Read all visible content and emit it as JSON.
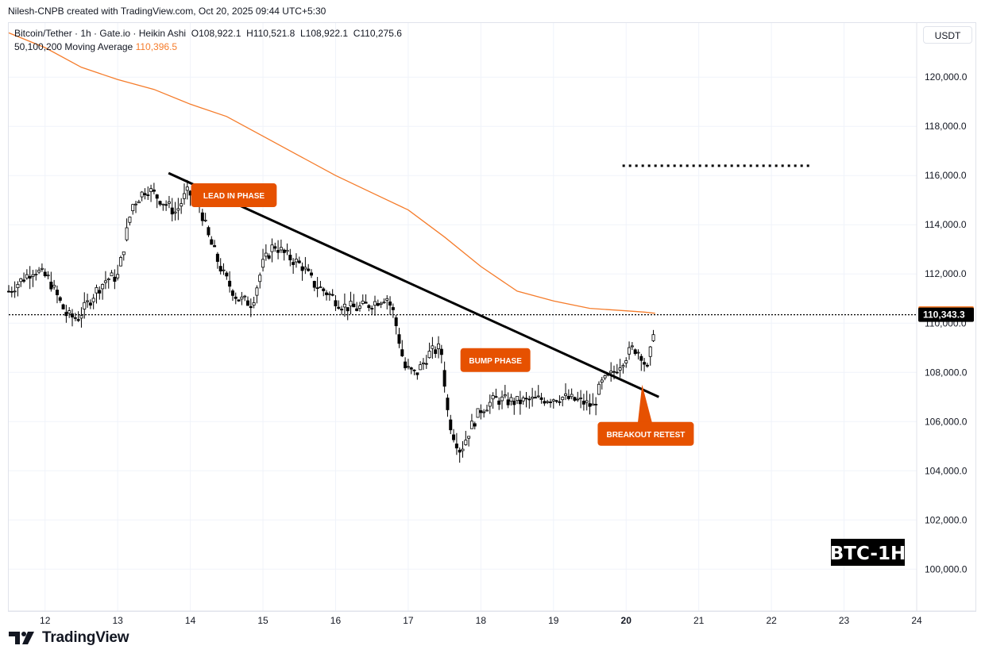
{
  "header": {
    "credit": "Nilesh-CNPB created with TradingView.com, Oct 20, 2025 09:44 UTC+5:30",
    "symbol_line": "Bitcoin/Tether · 1h · Gate.io · Heikin Ashi",
    "ohlc": {
      "o": "O108,922.1",
      "h": "H110,521.8",
      "l": "L108,922.1",
      "c": "C110,275.6"
    },
    "ma_label": "50,100,200 Moving Average",
    "ma_value": "110,396.5"
  },
  "currency_button": "USDT",
  "footer": {
    "brand": "TradingView"
  },
  "colors": {
    "up": "#000000",
    "down": "#000000",
    "ma": "#f57c2b",
    "annotation": "#e65100",
    "last_price_bg": "#000000",
    "grid": "#f0f3fa"
  },
  "chart_data": {
    "type": "candlestick",
    "title": "BTC-1H",
    "x_tick_labels": [
      "12",
      "13",
      "14",
      "15",
      "16",
      "17",
      "18",
      "19",
      "20",
      "21",
      "22",
      "23",
      "24"
    ],
    "y_tick_labels": [
      "100,000.0",
      "102,000.0",
      "104,000.0",
      "106,000.0",
      "108,000.0",
      "110,000.0",
      "112,000.0",
      "114,000.0",
      "116,000.0",
      "118,000.0",
      "120,000.0"
    ],
    "ylim": [
      98300,
      122200
    ],
    "xlim_days": [
      11.5,
      24.0
    ],
    "ma_price_label": "110,396.5",
    "last_price_label": "110,343.3",
    "last_price": 110343.3,
    "price_path_days": [
      11.5,
      11.85,
      12.05,
      12.3,
      12.45,
      12.7,
      12.85,
      13.0,
      13.2,
      13.4,
      13.6,
      13.8,
      13.95,
      14.1,
      14.25,
      14.45,
      14.65,
      14.85,
      15.0,
      15.15,
      15.3,
      15.55,
      15.7,
      15.9,
      16.1,
      16.3,
      16.5,
      16.7,
      16.8,
      16.95,
      17.1,
      17.3,
      17.45,
      17.55,
      17.62,
      17.72,
      17.85,
      18.0,
      18.2,
      18.5,
      18.8,
      19.1,
      19.4,
      19.55,
      19.65,
      19.8,
      19.95,
      20.1,
      20.2,
      20.3,
      20.35,
      20.4
    ],
    "price_path": [
      111300,
      112200,
      111800,
      110300,
      110200,
      111300,
      111800,
      111900,
      114800,
      115500,
      115000,
      114500,
      115300,
      115100,
      113500,
      112000,
      111000,
      110800,
      112400,
      113200,
      112800,
      112300,
      111600,
      111200,
      110700,
      110600,
      110800,
      111100,
      110400,
      108200,
      107900,
      108800,
      109000,
      106200,
      105500,
      104800,
      105700,
      106500,
      106900,
      106800,
      106900,
      107000,
      106800,
      106600,
      107500,
      107900,
      108500,
      109000,
      108800,
      108000,
      109200,
      110300
    ],
    "ma_days": [
      11.5,
      12.0,
      12.5,
      13.0,
      13.5,
      14.0,
      14.5,
      15.0,
      15.5,
      16.0,
      16.5,
      17.0,
      17.5,
      18.0,
      18.5,
      19.0,
      19.5,
      20.0,
      20.25,
      20.4
    ],
    "ma_values": [
      121800,
      121200,
      120400,
      119900,
      119500,
      118900,
      118400,
      117600,
      116800,
      116000,
      115300,
      114600,
      113500,
      112300,
      111300,
      110900,
      110600,
      110500,
      110450,
      110400
    ],
    "trendline": {
      "start_day": 13.7,
      "start_price": 116100,
      "end_day": 20.45,
      "end_price": 107000
    },
    "target_level": {
      "price": 116400,
      "from_day": 19.95,
      "to_day": 22.55
    },
    "annotations": [
      {
        "text": "LEAD IN PHASE",
        "day": 14.6,
        "price": 115200
      },
      {
        "text": "BUMP PHASE",
        "day": 18.2,
        "price": 108500
      },
      {
        "text": "BREAKOUT RETEST",
        "day": 20.27,
        "price": 105500,
        "pointer_day": 20.22,
        "pointer_price": 107500
      }
    ]
  }
}
